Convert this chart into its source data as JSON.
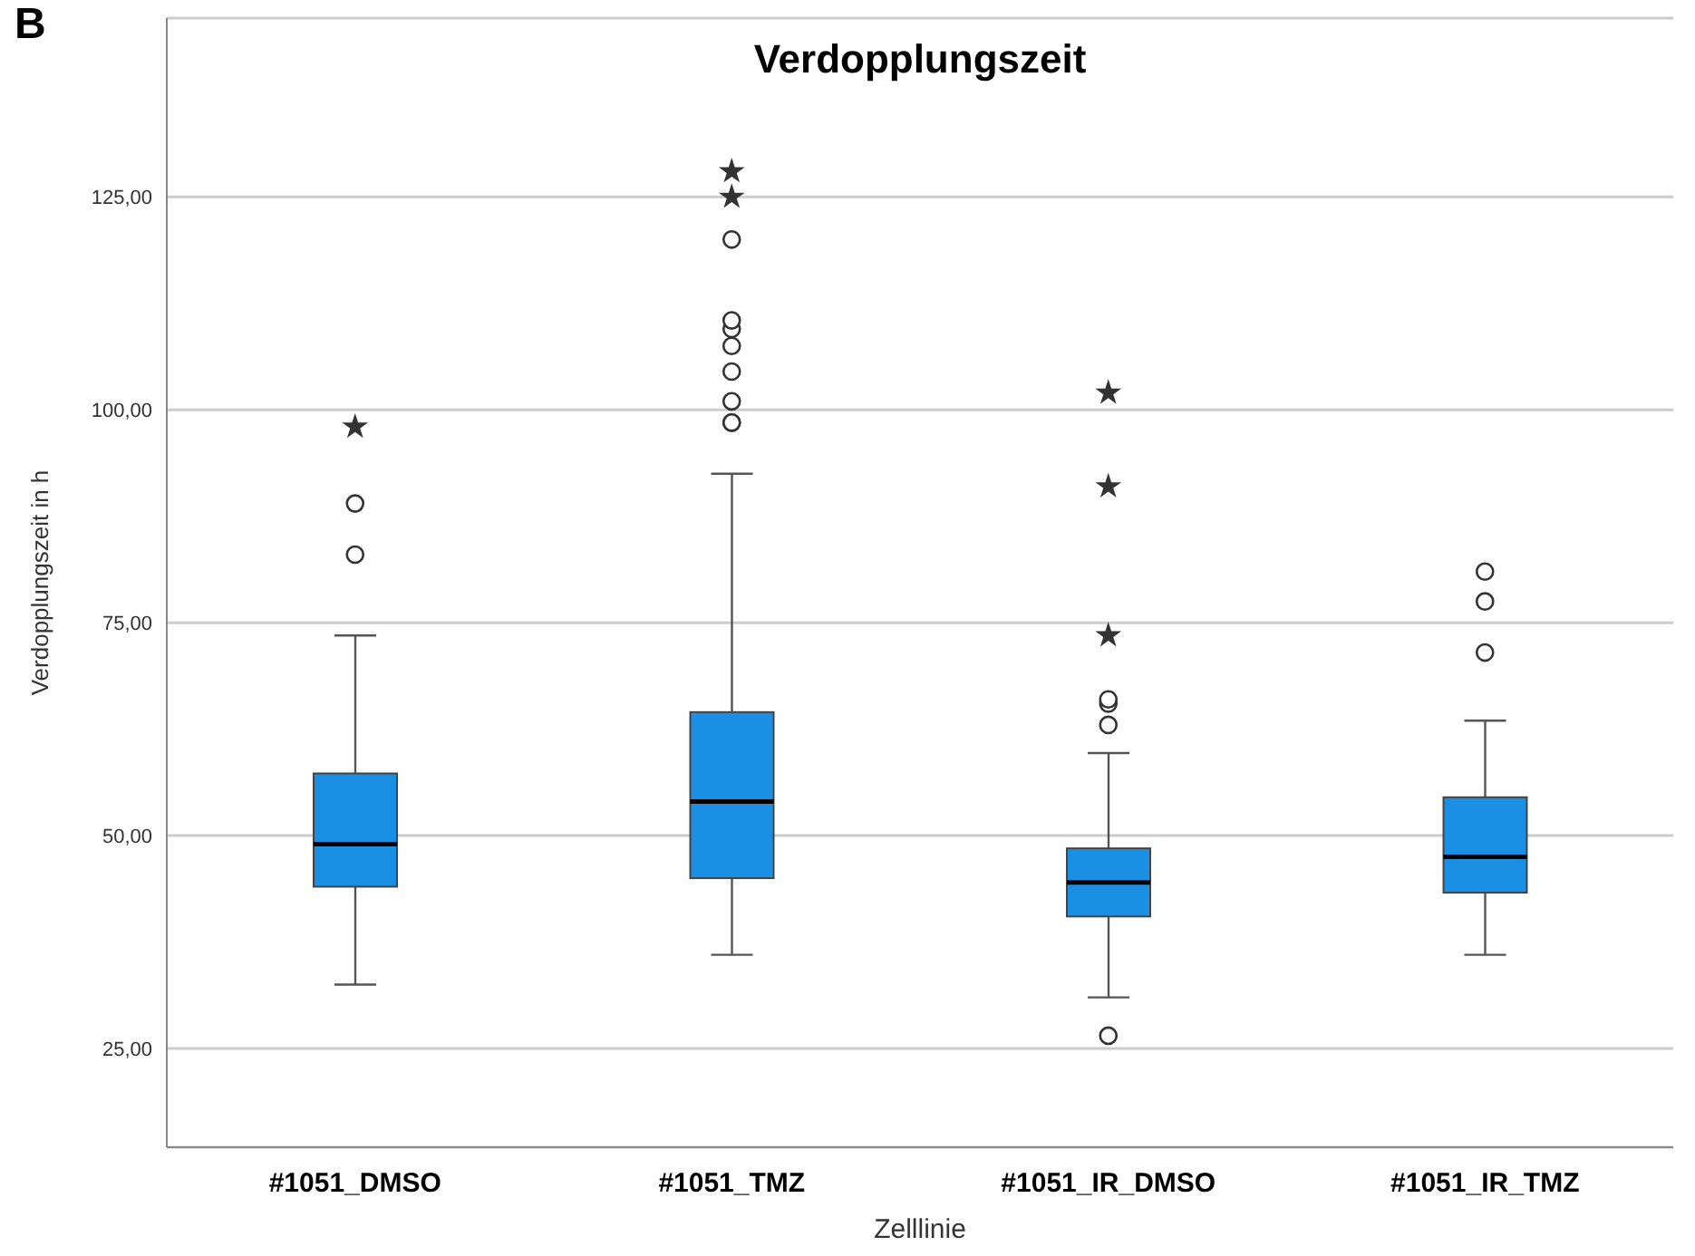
{
  "chart_data": {
    "type": "box",
    "title": "Verdopplungszeit",
    "xlabel": "Zelllinie",
    "ylabel": "Verdopplungszeit in h",
    "annotations": [
      "B"
    ],
    "categories": [
      "#1051_DMSO",
      "#1051_TMZ",
      "#1051_IR_DMSO",
      "#1051_IR_TMZ"
    ],
    "ylim": [
      13.4,
      146
    ],
    "yticks": [
      {
        "value": 25,
        "label": "25,00"
      },
      {
        "value": 50,
        "label": "50,00"
      },
      {
        "value": 75,
        "label": "75,00"
      },
      {
        "value": 100,
        "label": "100,00"
      },
      {
        "value": 125,
        "label": "125,00"
      }
    ],
    "grid": "y",
    "legend": false,
    "series": [
      {
        "type": "box",
        "color": "#1a8fe3",
        "boxes": [
          {
            "low": 32.5,
            "q1": 44,
            "median": 49,
            "q3": 57.3,
            "high": 73.5,
            "outliers": [
              83,
              89
            ]
          },
          {
            "low": 36,
            "q1": 45,
            "median": 54,
            "q3": 64.5,
            "high": 92.5,
            "outliers": [
              98.5,
              98.5,
              101,
              104.5,
              107.5,
              109.5,
              110.5,
              120
            ]
          },
          {
            "low": 31,
            "q1": 40.5,
            "median": 44.5,
            "q3": 48.5,
            "high": 59.7,
            "outliers": [
              26.5,
              63,
              65.5,
              66
            ]
          },
          {
            "low": 36,
            "q1": 43.3,
            "median": 47.5,
            "q3": 54.5,
            "high": 63.5,
            "outliers": [
              71.5,
              77.5,
              81
            ]
          }
        ]
      },
      {
        "type": "scatter",
        "marker": "star",
        "color": "#333333",
        "x": [
          "#1051_DMSO",
          "#1051_TMZ",
          "#1051_TMZ",
          "#1051_IR_DMSO",
          "#1051_IR_DMSO",
          "#1051_IR_DMSO"
        ],
        "values": [
          98,
          125,
          128,
          73.5,
          91,
          102
        ]
      }
    ]
  }
}
